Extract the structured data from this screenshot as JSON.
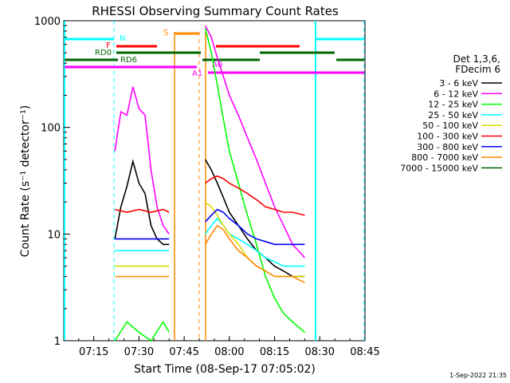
{
  "chart_data": {
    "type": "line",
    "title": "RHESSI Observing Summary Count Rates",
    "xlabel": "Start Time (08-Sep-17 07:05:02)",
    "ylabel": "Count Rate (s⁻¹ detector⁻¹)",
    "yscale": "log",
    "ylim": [
      1,
      1000
    ],
    "xlim": [
      "07:05:02",
      "08:45:00"
    ],
    "x_ticks": [
      "07:15",
      "07:30",
      "07:45",
      "08:00",
      "08:15",
      "08:30",
      "08:45"
    ],
    "y_ticks": [
      "1",
      "10",
      "100",
      "1000"
    ],
    "grid": false,
    "legend_position": "right",
    "legend_header": [
      "Det 1,3,6,",
      "FDecim 6"
    ],
    "series": [
      {
        "name": "3 - 6 keV",
        "color": "#000000",
        "points": [
          [
            "07:22",
            9
          ],
          [
            "07:24",
            18
          ],
          [
            "07:26",
            28
          ],
          [
            "07:28",
            48
          ],
          [
            "07:30",
            30
          ],
          [
            "07:32",
            24
          ],
          [
            "07:34",
            12
          ],
          [
            "07:36",
            9
          ],
          [
            "07:38",
            8
          ],
          [
            "07:40",
            8
          ],
          [
            "07:52",
            50
          ],
          [
            "07:54",
            40
          ],
          [
            "07:56",
            30
          ],
          [
            "07:58",
            22
          ],
          [
            "08:00",
            16
          ],
          [
            "08:03",
            12
          ],
          [
            "08:06",
            9
          ],
          [
            "08:09",
            7
          ],
          [
            "08:12",
            6
          ],
          [
            "08:15",
            5
          ],
          [
            "08:18",
            4.5
          ],
          [
            "08:21",
            4
          ],
          [
            "08:25",
            4
          ]
        ]
      },
      {
        "name": "6 - 12 keV",
        "color": "#ff00ff",
        "points": [
          [
            "07:22",
            60
          ],
          [
            "07:24",
            140
          ],
          [
            "07:26",
            130
          ],
          [
            "07:28",
            240
          ],
          [
            "07:30",
            150
          ],
          [
            "07:32",
            130
          ],
          [
            "07:34",
            40
          ],
          [
            "07:36",
            18
          ],
          [
            "07:38",
            12
          ],
          [
            "07:40",
            10
          ],
          [
            "07:52",
            900
          ],
          [
            "07:54",
            700
          ],
          [
            "07:56",
            450
          ],
          [
            "07:58",
            300
          ],
          [
            "08:00",
            200
          ],
          [
            "08:03",
            130
          ],
          [
            "08:06",
            80
          ],
          [
            "08:09",
            50
          ],
          [
            "08:12",
            30
          ],
          [
            "08:15",
            18
          ],
          [
            "08:18",
            12
          ],
          [
            "08:21",
            8
          ],
          [
            "08:25",
            6
          ]
        ]
      },
      {
        "name": "12 - 25 keV",
        "color": "#00ff00",
        "points": [
          [
            "07:22",
            1
          ],
          [
            "07:26",
            1.5
          ],
          [
            "07:30",
            1.2
          ],
          [
            "07:34",
            1
          ],
          [
            "07:38",
            1.5
          ],
          [
            "07:40",
            1.2
          ],
          [
            "07:52",
            850
          ],
          [
            "07:54",
            500
          ],
          [
            "07:56",
            250
          ],
          [
            "07:58",
            120
          ],
          [
            "08:00",
            60
          ],
          [
            "08:03",
            30
          ],
          [
            "08:06",
            15
          ],
          [
            "08:09",
            8
          ],
          [
            "08:12",
            4
          ],
          [
            "08:15",
            2.5
          ],
          [
            "08:18",
            1.8
          ],
          [
            "08:21",
            1.5
          ],
          [
            "08:25",
            1.2
          ]
        ]
      },
      {
        "name": "25 - 50 keV",
        "color": "#00ffff",
        "points": [
          [
            "07:22",
            7
          ],
          [
            "07:26",
            7
          ],
          [
            "07:30",
            7
          ],
          [
            "07:34",
            7
          ],
          [
            "07:38",
            7
          ],
          [
            "07:40",
            7
          ],
          [
            "07:52",
            10
          ],
          [
            "07:54",
            12
          ],
          [
            "07:56",
            14
          ],
          [
            "07:58",
            12
          ],
          [
            "08:00",
            10
          ],
          [
            "08:03",
            9
          ],
          [
            "08:06",
            8
          ],
          [
            "08:09",
            7
          ],
          [
            "08:12",
            6
          ],
          [
            "08:15",
            5.5
          ],
          [
            "08:18",
            5
          ],
          [
            "08:21",
            5
          ],
          [
            "08:25",
            5
          ]
        ]
      },
      {
        "name": "50 - 100 keV",
        "color": "#dddd00",
        "points": [
          [
            "07:22",
            5
          ],
          [
            "07:26",
            5
          ],
          [
            "07:30",
            5
          ],
          [
            "07:34",
            5
          ],
          [
            "07:38",
            5
          ],
          [
            "07:40",
            5
          ],
          [
            "07:52",
            20
          ],
          [
            "07:54",
            18
          ],
          [
            "07:56",
            15
          ],
          [
            "07:58",
            12
          ],
          [
            "08:00",
            10
          ],
          [
            "08:03",
            8
          ],
          [
            "08:06",
            6
          ],
          [
            "08:09",
            5
          ],
          [
            "08:12",
            4.5
          ],
          [
            "08:15",
            4
          ],
          [
            "08:18",
            4
          ],
          [
            "08:21",
            4
          ],
          [
            "08:25",
            4
          ]
        ]
      },
      {
        "name": "100 - 300 keV",
        "color": "#ff0000",
        "points": [
          [
            "07:22",
            17
          ],
          [
            "07:26",
            16
          ],
          [
            "07:30",
            17
          ],
          [
            "07:34",
            16
          ],
          [
            "07:38",
            17
          ],
          [
            "07:40",
            16
          ],
          [
            "07:52",
            30
          ],
          [
            "07:54",
            33
          ],
          [
            "07:56",
            35
          ],
          [
            "07:58",
            33
          ],
          [
            "08:00",
            30
          ],
          [
            "08:03",
            27
          ],
          [
            "08:06",
            24
          ],
          [
            "08:09",
            21
          ],
          [
            "08:12",
            18
          ],
          [
            "08:15",
            17
          ],
          [
            "08:18",
            16
          ],
          [
            "08:21",
            16
          ],
          [
            "08:25",
            15
          ]
        ]
      },
      {
        "name": "300 - 800 keV",
        "color": "#0000ff",
        "points": [
          [
            "07:22",
            9
          ],
          [
            "07:26",
            9
          ],
          [
            "07:30",
            9
          ],
          [
            "07:34",
            9
          ],
          [
            "07:38",
            9
          ],
          [
            "07:40",
            9
          ],
          [
            "07:52",
            13
          ],
          [
            "07:54",
            15
          ],
          [
            "07:56",
            17
          ],
          [
            "07:58",
            16
          ],
          [
            "08:00",
            14
          ],
          [
            "08:03",
            12
          ],
          [
            "08:06",
            10
          ],
          [
            "08:09",
            9
          ],
          [
            "08:12",
            8.5
          ],
          [
            "08:15",
            8
          ],
          [
            "08:18",
            8
          ],
          [
            "08:21",
            8
          ],
          [
            "08:25",
            8
          ]
        ]
      },
      {
        "name": "800 - 7000 keV",
        "color": "#ff8800",
        "points": [
          [
            "07:22",
            4
          ],
          [
            "07:26",
            4
          ],
          [
            "07:30",
            4
          ],
          [
            "07:34",
            4
          ],
          [
            "07:38",
            4
          ],
          [
            "07:40",
            4
          ],
          [
            "07:52",
            8
          ],
          [
            "07:54",
            10
          ],
          [
            "07:56",
            12
          ],
          [
            "07:58",
            11
          ],
          [
            "08:00",
            9
          ],
          [
            "08:03",
            7
          ],
          [
            "08:06",
            6
          ],
          [
            "08:09",
            5
          ],
          [
            "08:12",
            4.5
          ],
          [
            "08:15",
            4
          ],
          [
            "08:18",
            4
          ],
          [
            "08:21",
            4
          ],
          [
            "08:25",
            3.5
          ]
        ]
      },
      {
        "name": "7000 - 15000 keV",
        "color": "#006600",
        "points": []
      }
    ],
    "annotations": [
      "N",
      "F",
      "RD0",
      "RD6",
      "S",
      "A1",
      "A0"
    ],
    "timestamp": "1-Sep-2022 21:35"
  }
}
